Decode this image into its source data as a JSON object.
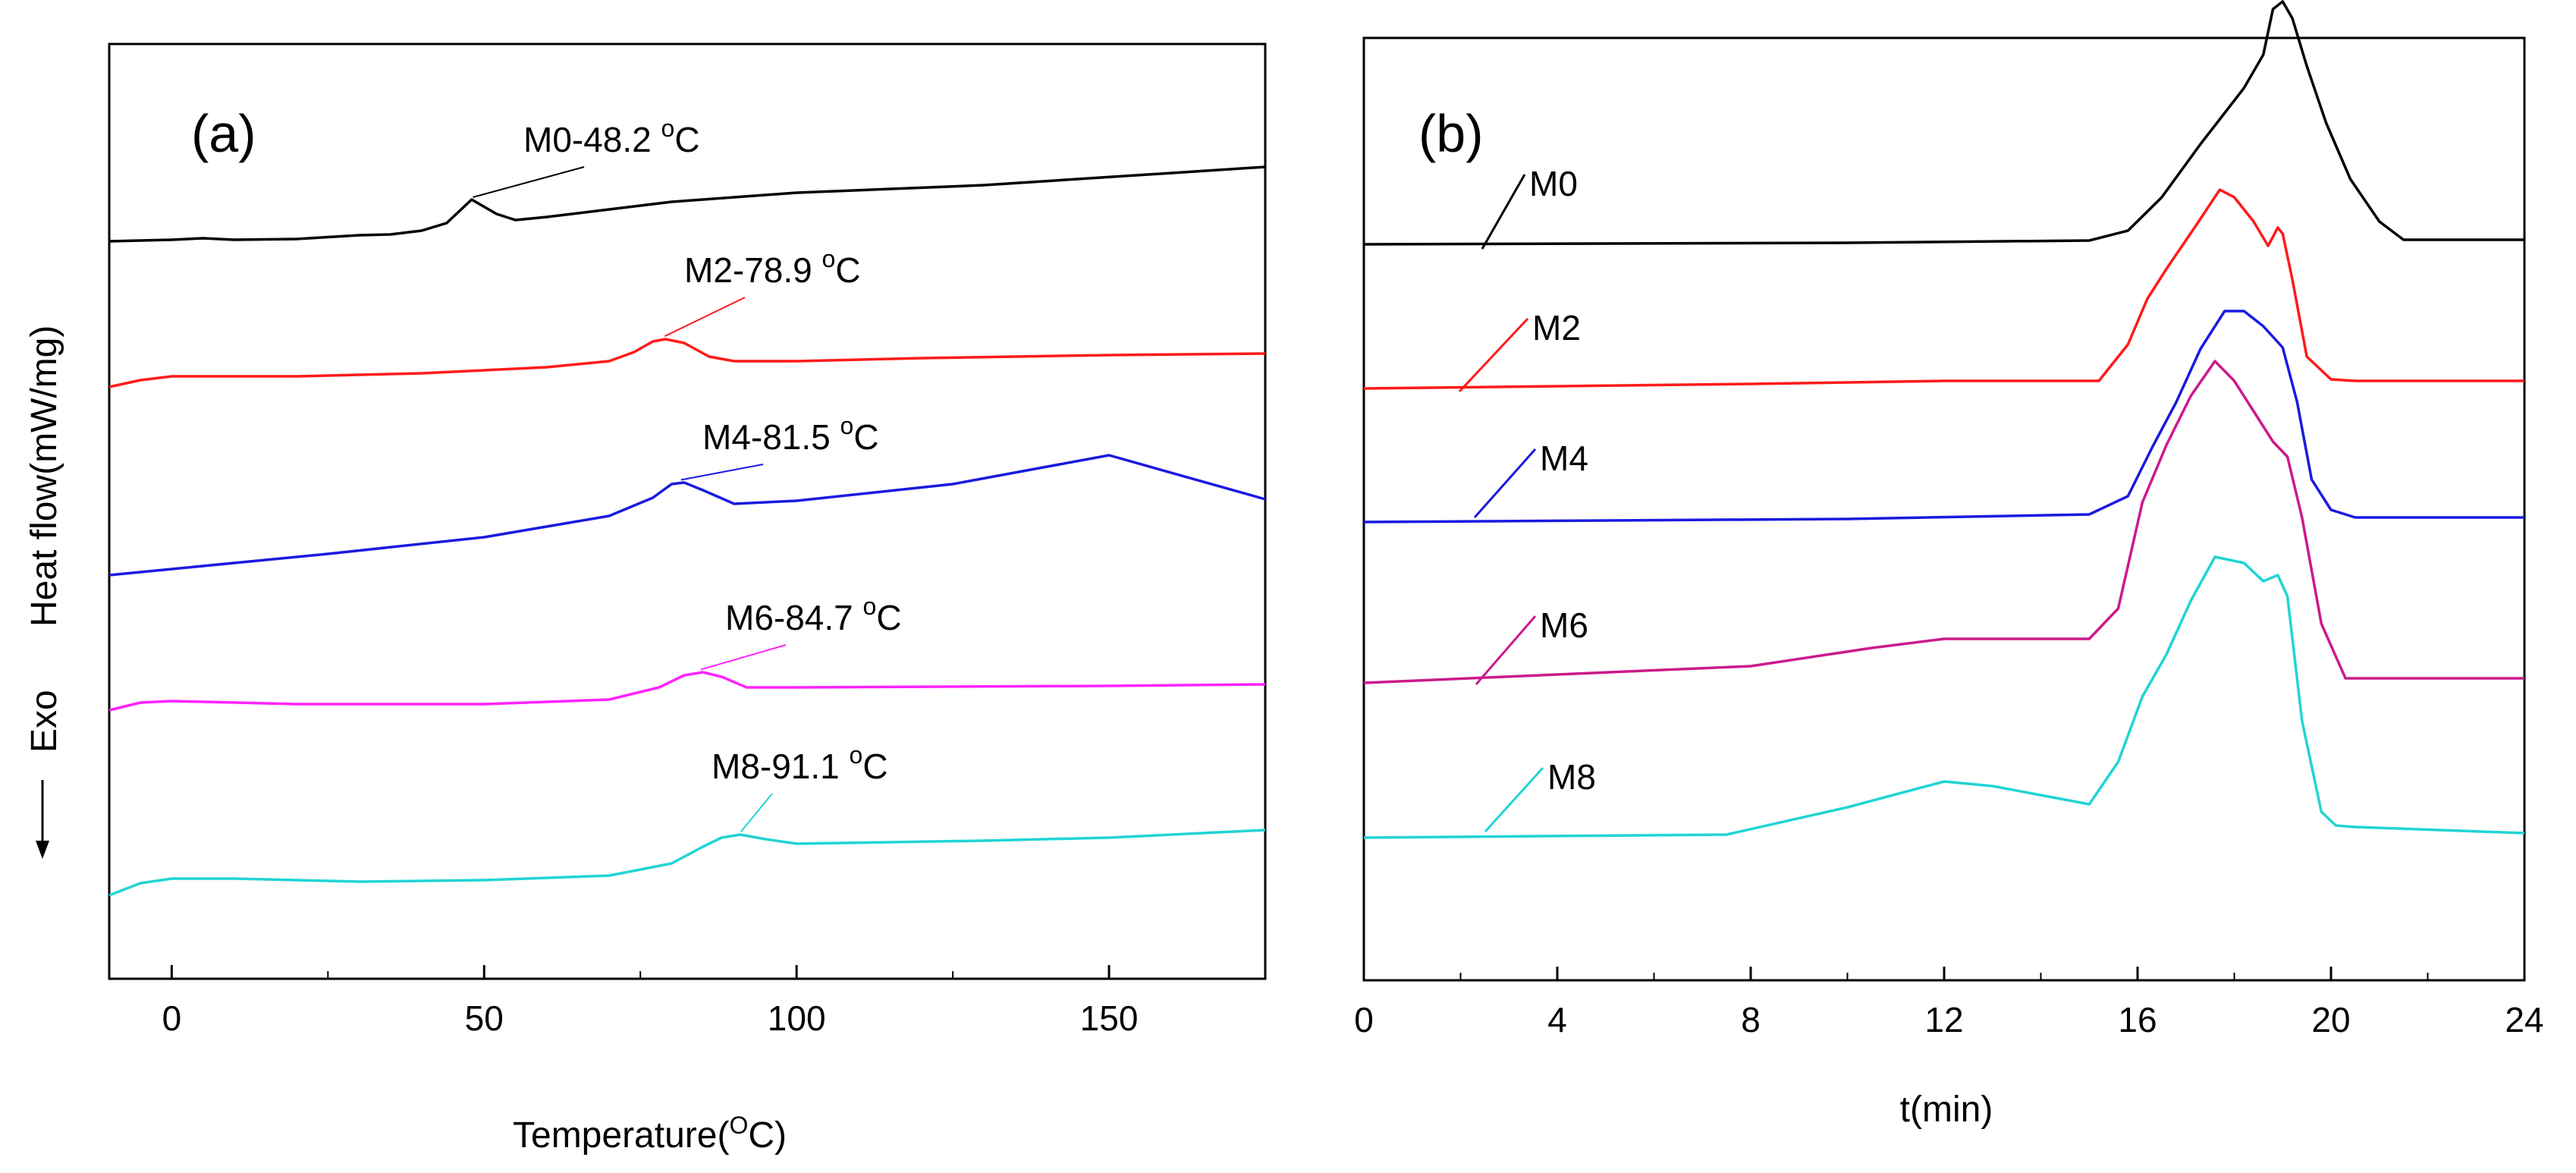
{
  "chart_data": [
    {
      "panel": "(a)",
      "type": "line",
      "xlabel_text": "Temperature(",
      "xlabel_sup": "O",
      "xlabel_end": "C)",
      "ylabel": "Heat flow(mW/mg)",
      "exo_label": "Exo",
      "xlim": [
        -10,
        175
      ],
      "xticks": [
        0,
        50,
        100,
        150
      ],
      "grid": false,
      "series": [
        {
          "name": "M0",
          "color": "#000000",
          "annotation": "M0-48.2 ",
          "annotation_sup": "o",
          "annotation_end": "C",
          "tg": 48.2,
          "x": [
            -10,
            0,
            5,
            10,
            20,
            30,
            35,
            40,
            44,
            48,
            52,
            55,
            60,
            70,
            80,
            100,
            130,
            175
          ],
          "y": [
            0,
            0.02,
            0.04,
            0.02,
            0.03,
            0.08,
            0.09,
            0.14,
            0.24,
            0.55,
            0.36,
            0.28,
            0.32,
            0.42,
            0.52,
            0.64,
            0.74,
            0.98
          ]
        },
        {
          "name": "M2",
          "color": "#ff1a1a",
          "annotation": "M2-78.9 ",
          "annotation_sup": "o",
          "annotation_end": "C",
          "tg": 78.9,
          "x": [
            -10,
            -5,
            0,
            20,
            40,
            60,
            70,
            74,
            77,
            79,
            82,
            86,
            90,
            100,
            120,
            150,
            175
          ],
          "y": [
            0,
            0.09,
            0.14,
            0.14,
            0.18,
            0.26,
            0.34,
            0.46,
            0.6,
            0.63,
            0.58,
            0.4,
            0.34,
            0.34,
            0.38,
            0.42,
            0.44
          ]
        },
        {
          "name": "M4",
          "color": "#1a1ae0",
          "annotation": "M4-81.5 ",
          "annotation_sup": "o",
          "annotation_end": "C",
          "tg": 81.5,
          "x": [
            -10,
            0,
            25,
            50,
            70,
            77,
            80,
            82,
            85,
            90,
            100,
            125,
            150,
            175
          ],
          "y": [
            0,
            0.08,
            0.28,
            0.5,
            0.78,
            1.02,
            1.2,
            1.22,
            1.12,
            0.94,
            0.98,
            1.2,
            1.58,
            1.0
          ]
        },
        {
          "name": "M6",
          "color": "#ff22ff",
          "annotation": "M6-84.7 ",
          "annotation_sup": "o",
          "annotation_end": "C",
          "tg": 84.7,
          "x": [
            -10,
            -5,
            0,
            20,
            50,
            70,
            78,
            82,
            85,
            88,
            92,
            100,
            150,
            175
          ],
          "y": [
            0,
            0.1,
            0.12,
            0.08,
            0.08,
            0.14,
            0.3,
            0.46,
            0.5,
            0.44,
            0.3,
            0.3,
            0.32,
            0.34
          ]
        },
        {
          "name": "M8",
          "color": "#22d4d4",
          "annotation": "M8-91.1 ",
          "annotation_sup": "o",
          "annotation_end": "C",
          "tg": 91.1,
          "x": [
            -10,
            -5,
            0,
            10,
            30,
            50,
            70,
            80,
            85,
            88,
            91,
            95,
            100,
            130,
            150,
            175
          ],
          "y": [
            0,
            0.16,
            0.22,
            0.22,
            0.18,
            0.2,
            0.26,
            0.42,
            0.64,
            0.76,
            0.8,
            0.74,
            0.68,
            0.72,
            0.76,
            0.86
          ]
        }
      ]
    },
    {
      "panel": "(b)",
      "type": "line",
      "xlabel": "t(min)",
      "ylabel": "",
      "xlim": [
        0,
        24
      ],
      "xticks": [
        0,
        4,
        8,
        12,
        16,
        20,
        24
      ],
      "grid": false,
      "series": [
        {
          "name": "M0",
          "color": "#000000",
          "x": [
            0,
            10,
            15,
            15.8,
            16.5,
            17.3,
            18.2,
            18.6,
            18.8,
            19.0,
            19.2,
            19.5,
            19.9,
            20.4,
            21.0,
            21.5,
            24
          ],
          "y": [
            0,
            0.02,
            0.05,
            0.18,
            0.62,
            1.32,
            2.06,
            2.5,
            3.1,
            3.2,
            2.98,
            2.35,
            1.6,
            0.86,
            0.3,
            0.06,
            0.06
          ]
        },
        {
          "name": "M2",
          "color": "#ff1a1a",
          "x": [
            0,
            8,
            12,
            15.2,
            15.8,
            16.2,
            16.6,
            17.2,
            17.7,
            18.0,
            18.4,
            18.7,
            18.9,
            19.0,
            19.2,
            19.5,
            20.0,
            20.5,
            24
          ],
          "y": [
            0,
            0.06,
            0.1,
            0.1,
            0.58,
            1.18,
            1.58,
            2.14,
            2.62,
            2.52,
            2.2,
            1.88,
            2.12,
            2.04,
            1.44,
            0.42,
            0.12,
            0.1,
            0.1
          ]
        },
        {
          "name": "M4",
          "color": "#1a1ae0",
          "x": [
            0,
            10,
            15,
            15.8,
            16.3,
            16.8,
            17.3,
            17.8,
            18.2,
            18.6,
            19.0,
            19.3,
            19.6,
            20.0,
            20.5,
            24
          ],
          "y": [
            0,
            0.04,
            0.1,
            0.34,
            0.98,
            1.58,
            2.28,
            2.78,
            2.78,
            2.58,
            2.3,
            1.58,
            0.56,
            0.16,
            0.06,
            0.06
          ]
        },
        {
          "name": "M6",
          "color": "#cc1a8c",
          "x": [
            0,
            8,
            10.5,
            12,
            15,
            15.6,
            16.1,
            16.6,
            17.1,
            17.6,
            18.0,
            18.4,
            18.8,
            19.1,
            19.4,
            19.8,
            20.3,
            24
          ],
          "y": [
            0,
            0.22,
            0.46,
            0.58,
            0.58,
            0.98,
            2.38,
            3.14,
            3.78,
            4.24,
            3.98,
            3.58,
            3.18,
            2.98,
            2.18,
            0.78,
            0.06,
            0.06
          ]
        },
        {
          "name": "M8",
          "color": "#22d4d4",
          "x": [
            0,
            7.5,
            10,
            12,
            13,
            15,
            15.6,
            16.1,
            16.6,
            17.1,
            17.6,
            18.2,
            18.6,
            18.9,
            19.1,
            19.4,
            19.8,
            20.1,
            20.5,
            24
          ],
          "y": [
            0,
            0.04,
            0.4,
            0.74,
            0.68,
            0.44,
            1.0,
            1.86,
            2.42,
            3.12,
            3.7,
            3.62,
            3.38,
            3.46,
            3.18,
            1.54,
            0.34,
            0.16,
            0.14,
            0.06
          ]
        }
      ]
    }
  ]
}
